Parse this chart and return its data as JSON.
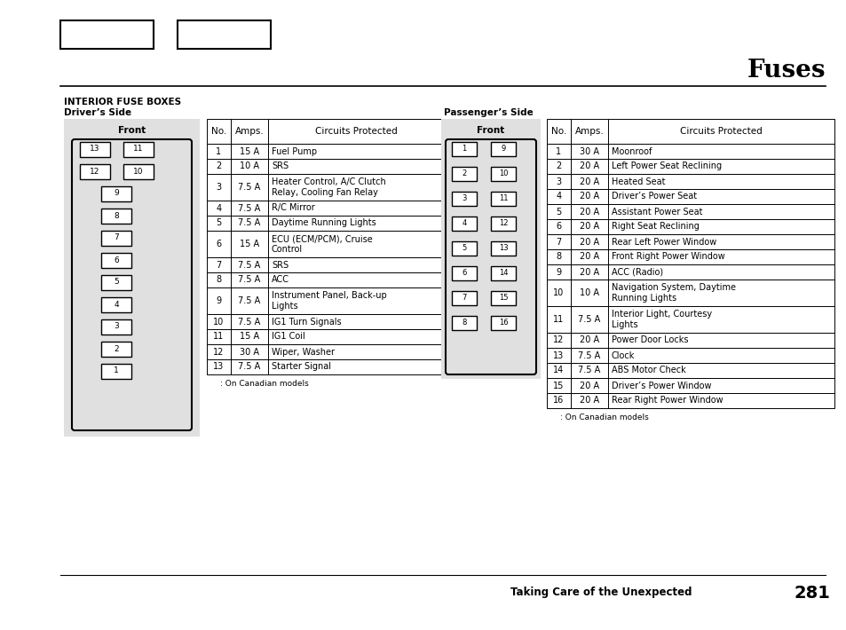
{
  "title": "Fuses",
  "header_bold": "INTERIOR FUSE BOXES",
  "driver_side_label": "Driver’s Side",
  "passenger_side_label": "Passenger’s Side",
  "front_label": "Front",
  "no_label": "No.",
  "amps_label": "Amps.",
  "circuits_label": "Circuits Protected",
  "canadian_note": ": On Canadian models",
  "footer_text": "Taking Care of the Unexpected",
  "page_number": "281",
  "driver_fuses": [
    {
      "no": "1",
      "amps": "15 A",
      "circuit": "Fuel Pump"
    },
    {
      "no": "2",
      "amps": "10 A",
      "circuit": "SRS"
    },
    {
      "no": "3",
      "amps": "7.5 A",
      "circuit": "Heater Control, A/C Clutch\nRelay, Cooling Fan Relay"
    },
    {
      "no": "4",
      "amps": "7.5 A",
      "circuit": "R/C Mirror"
    },
    {
      "no": "5",
      "amps": "7.5 A",
      "circuit": "Daytime Running Lights"
    },
    {
      "no": "6",
      "amps": "15 A",
      "circuit": "ECU (ECM/PCM), Cruise\nControl"
    },
    {
      "no": "7",
      "amps": "7.5 A",
      "circuit": "SRS"
    },
    {
      "no": "8",
      "amps": "7.5 A",
      "circuit": "ACC"
    },
    {
      "no": "9",
      "amps": "7.5 A",
      "circuit": "Instrument Panel, Back-up\nLights"
    },
    {
      "no": "10",
      "amps": "7.5 A",
      "circuit": "IG1 Turn Signals"
    },
    {
      "no": "11",
      "amps": "15 A",
      "circuit": "IG1 Coil"
    },
    {
      "no": "12",
      "amps": "30 A",
      "circuit": "Wiper, Washer"
    },
    {
      "no": "13",
      "amps": "7.5 A",
      "circuit": "Starter Signal"
    }
  ],
  "passenger_fuses": [
    {
      "no": "1",
      "amps": "30 A",
      "circuit": "Moonroof"
    },
    {
      "no": "2",
      "amps": "20 A",
      "circuit": "Left Power Seat Reclining"
    },
    {
      "no": "3",
      "amps": "20 A",
      "circuit": "Heated Seat"
    },
    {
      "no": "4",
      "amps": "20 A",
      "circuit": "Driver’s Power Seat"
    },
    {
      "no": "5",
      "amps": "20 A",
      "circuit": "Assistant Power Seat"
    },
    {
      "no": "6",
      "amps": "20 A",
      "circuit": "Right Seat Reclining"
    },
    {
      "no": "7",
      "amps": "20 A",
      "circuit": "Rear Left Power Window"
    },
    {
      "no": "8",
      "amps": "20 A",
      "circuit": "Front Right Power Window"
    },
    {
      "no": "9",
      "amps": "20 A",
      "circuit": "ACC (Radio)"
    },
    {
      "no": "10",
      "amps": "10 A",
      "circuit": "Navigation System, Daytime\nRunning Lights"
    },
    {
      "no": "11",
      "amps": "7.5 A",
      "circuit": "Interior Light, Courtesy\nLights"
    },
    {
      "no": "12",
      "amps": "20 A",
      "circuit": "Power Door Locks"
    },
    {
      "no": "13",
      "amps": "7.5 A",
      "circuit": "Clock"
    },
    {
      "no": "14",
      "amps": "7.5 A",
      "circuit": "ABS Motor Check"
    },
    {
      "no": "15",
      "amps": "20 A",
      "circuit": "Driver’s Power Window"
    },
    {
      "no": "16",
      "amps": "20 A",
      "circuit": "Rear Right Power Window"
    }
  ],
  "driver_diagram_rows": [
    [
      "13",
      "11"
    ],
    [
      "12",
      "10"
    ],
    [
      "9"
    ],
    [
      "8"
    ],
    [
      "7"
    ],
    [
      "6"
    ],
    [
      "5"
    ],
    [
      "4"
    ],
    [
      "3"
    ],
    [
      "2"
    ],
    [
      "1"
    ]
  ],
  "passenger_diagram_rows": [
    [
      "1",
      "9"
    ],
    [
      "2",
      "10"
    ],
    [
      "3",
      "11"
    ],
    [
      "4",
      "12"
    ],
    [
      "5",
      "13"
    ],
    [
      "6",
      "14"
    ],
    [
      "7",
      "15"
    ],
    [
      "8",
      "16"
    ]
  ],
  "bg_color": "#ffffff",
  "diagram_bg": "#e0e0e0",
  "box_color": "#ffffff"
}
